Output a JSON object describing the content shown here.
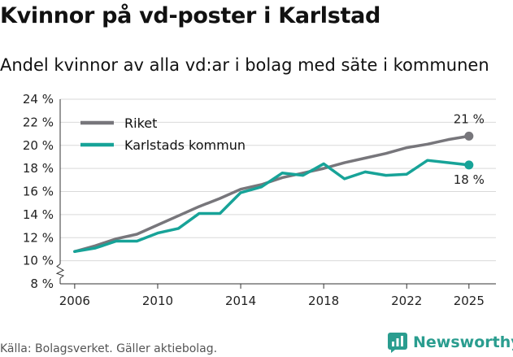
{
  "title": "Kvinnor på vd-poster i Karlstad",
  "subtitle": "Andel kvinnor av alla vd:ar i bolag med säte i kommunen",
  "source": "Källa: Bolagsverket. Gäller aktiebolag.",
  "brand": "Newsworthy",
  "colors": {
    "riket": "#77767b",
    "karlstad": "#17a398",
    "brand": "#2a9d8f"
  },
  "chart_data": {
    "type": "line",
    "title": "Kvinnor på vd-poster i Karlstad",
    "subtitle": "Andel kvinnor av alla vd:ar i bolag med säte i kommunen",
    "xlabel": "",
    "ylabel": "",
    "x": [
      2006,
      2007,
      2008,
      2009,
      2010,
      2011,
      2012,
      2013,
      2014,
      2015,
      2016,
      2017,
      2018,
      2019,
      2020,
      2021,
      2022,
      2023,
      2024,
      2025
    ],
    "xticks": [
      2006,
      2010,
      2014,
      2018,
      2022,
      2025
    ],
    "xtick_labels": [
      "2006",
      "2010",
      "2014",
      "2018",
      "2022",
      "2025"
    ],
    "ylim": [
      8,
      24
    ],
    "yticks": [
      8,
      10,
      12,
      14,
      16,
      18,
      20,
      22,
      24
    ],
    "ytick_labels": [
      "8 %",
      "10 %",
      "12 %",
      "14 %",
      "16 %",
      "18 %",
      "20 %",
      "22 %",
      "24 %"
    ],
    "grid": true,
    "axis_break": true,
    "legend_position": "top-left",
    "series": [
      {
        "name": "Riket",
        "color": "#77767b",
        "values": [
          10.8,
          11.3,
          11.9,
          12.3,
          13.1,
          13.9,
          14.7,
          15.4,
          16.2,
          16.6,
          17.2,
          17.6,
          18.0,
          18.5,
          18.9,
          19.3,
          19.8,
          20.1,
          20.5,
          20.8
        ],
        "end_label": "21 %"
      },
      {
        "name": "Karlstads kommun",
        "color": "#17a398",
        "values": [
          10.8,
          11.1,
          11.7,
          11.7,
          12.4,
          12.8,
          14.1,
          14.1,
          15.9,
          16.4,
          17.6,
          17.4,
          18.4,
          17.1,
          17.7,
          17.4,
          17.5,
          18.7,
          18.5,
          18.3
        ],
        "end_label": "18 %"
      }
    ]
  }
}
